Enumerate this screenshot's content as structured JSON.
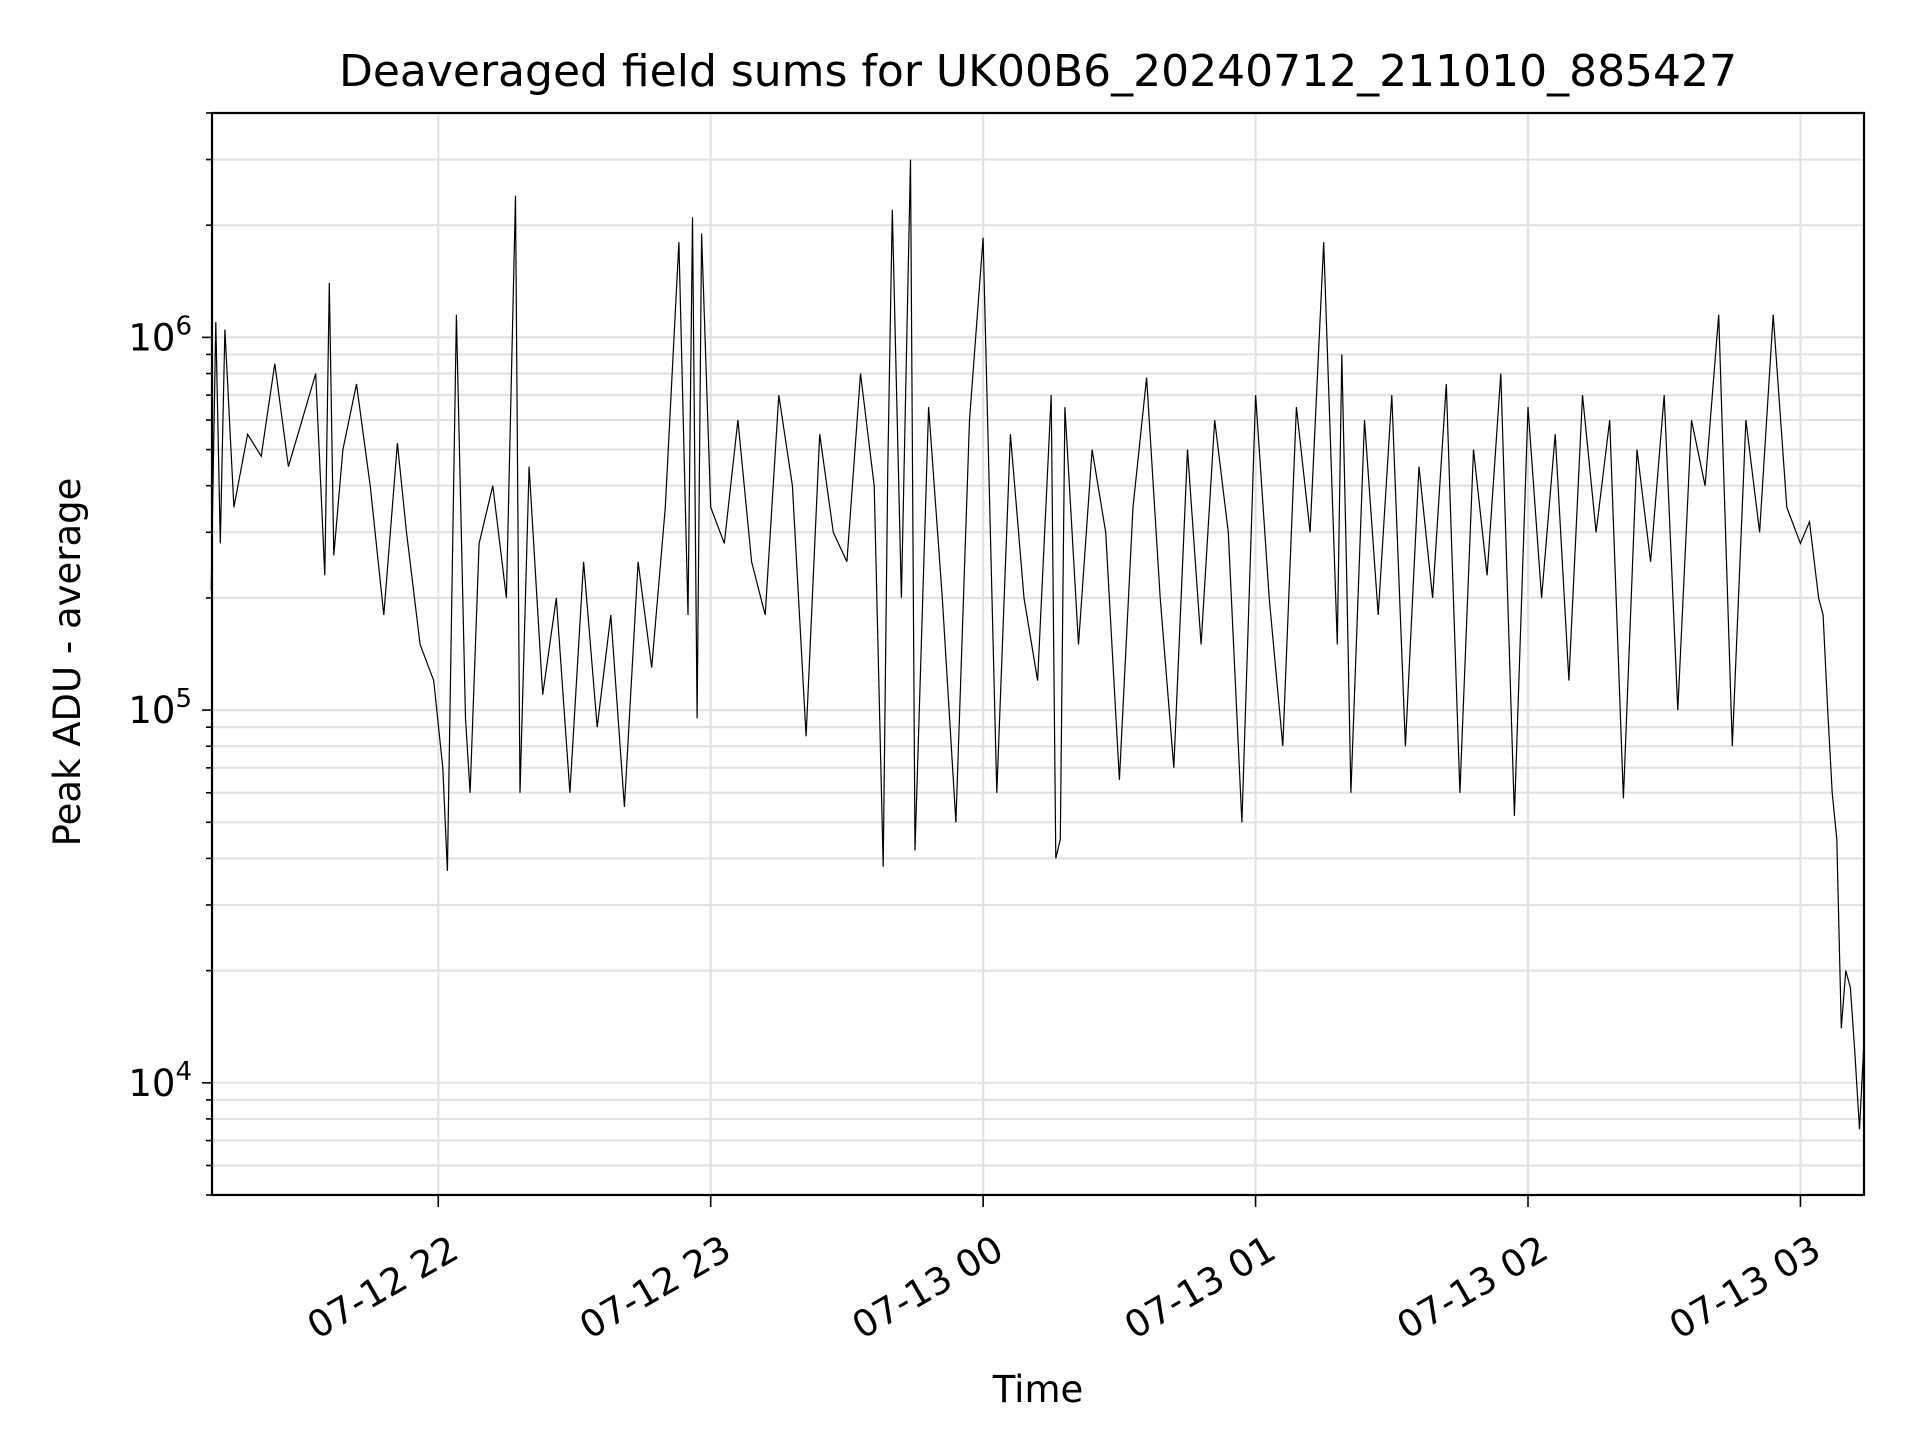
{
  "chart_data": {
    "type": "line",
    "title": "Deaveraged field sums for UK00B6_20240712_211010_885427",
    "xlabel": "Time",
    "ylabel": "Peak ADU - average",
    "x_type": "datetime",
    "xlim": [
      "2024-07-12T21:10:10",
      "2024-07-13T03:14:00"
    ],
    "ylim": [
      5000,
      4000000
    ],
    "yscale": "log",
    "grid": true,
    "legend": "none",
    "x_ticks": [
      "2024-07-12T22:00",
      "2024-07-12T23:00",
      "2024-07-13T00:00",
      "2024-07-13T01:00",
      "2024-07-13T02:00",
      "2024-07-13T03:00"
    ],
    "x_tick_labels": [
      "07-12 22",
      "07-12 23",
      "07-13 00",
      "07-13 01",
      "07-13 02",
      "07-13 03"
    ],
    "y_ticks": [
      {
        "value": 10000,
        "base": "10",
        "exp": "4"
      },
      {
        "value": 100000,
        "base": "10",
        "exp": "5"
      },
      {
        "value": 1000000,
        "base": "10",
        "exp": "6"
      }
    ],
    "series": [
      {
        "color": "#000000",
        "x": [
          "2024-07-12T21:10",
          "2024-07-12T21:11",
          "2024-07-12T21:12",
          "2024-07-12T21:13",
          "2024-07-12T21:15",
          "2024-07-12T21:18",
          "2024-07-12T21:21",
          "2024-07-12T21:24",
          "2024-07-12T21:27",
          "2024-07-12T21:30",
          "2024-07-12T21:33",
          "2024-07-12T21:35",
          "2024-07-12T21:36",
          "2024-07-12T21:37",
          "2024-07-12T21:39",
          "2024-07-12T21:42",
          "2024-07-12T21:45",
          "2024-07-12T21:48",
          "2024-07-12T21:51",
          "2024-07-12T21:53",
          "2024-07-12T21:56",
          "2024-07-12T21:59",
          "2024-07-12T22:01",
          "2024-07-12T22:02",
          "2024-07-12T22:04",
          "2024-07-12T22:06",
          "2024-07-12T22:07",
          "2024-07-12T22:09",
          "2024-07-12T22:12",
          "2024-07-12T22:15",
          "2024-07-12T22:17",
          "2024-07-12T22:18",
          "2024-07-12T22:20",
          "2024-07-12T22:23",
          "2024-07-12T22:26",
          "2024-07-12T22:29",
          "2024-07-12T22:32",
          "2024-07-12T22:35",
          "2024-07-12T22:38",
          "2024-07-12T22:41",
          "2024-07-12T22:44",
          "2024-07-12T22:47",
          "2024-07-12T22:50",
          "2024-07-12T22:53",
          "2024-07-12T22:55",
          "2024-07-12T22:56",
          "2024-07-12T22:57",
          "2024-07-12T22:58",
          "2024-07-12T23:00",
          "2024-07-12T23:03",
          "2024-07-12T23:06",
          "2024-07-12T23:09",
          "2024-07-12T23:12",
          "2024-07-12T23:15",
          "2024-07-12T23:18",
          "2024-07-12T23:21",
          "2024-07-12T23:24",
          "2024-07-12T23:27",
          "2024-07-12T23:30",
          "2024-07-12T23:33",
          "2024-07-12T23:36",
          "2024-07-12T23:38",
          "2024-07-12T23:39",
          "2024-07-12T23:40",
          "2024-07-12T23:42",
          "2024-07-12T23:44",
          "2024-07-12T23:45",
          "2024-07-12T23:48",
          "2024-07-12T23:51",
          "2024-07-12T23:54",
          "2024-07-12T23:57",
          "2024-07-13T00:00",
          "2024-07-13T00:03",
          "2024-07-13T00:06",
          "2024-07-13T00:09",
          "2024-07-13T00:12",
          "2024-07-13T00:15",
          "2024-07-13T00:16",
          "2024-07-13T00:17",
          "2024-07-13T00:18",
          "2024-07-13T00:21",
          "2024-07-13T00:24",
          "2024-07-13T00:27",
          "2024-07-13T00:30",
          "2024-07-13T00:33",
          "2024-07-13T00:36",
          "2024-07-13T00:39",
          "2024-07-13T00:42",
          "2024-07-13T00:45",
          "2024-07-13T00:48",
          "2024-07-13T00:51",
          "2024-07-13T00:54",
          "2024-07-13T00:57",
          "2024-07-13T01:00",
          "2024-07-13T01:03",
          "2024-07-13T01:06",
          "2024-07-13T01:09",
          "2024-07-13T01:12",
          "2024-07-13T01:15",
          "2024-07-13T01:18",
          "2024-07-13T01:19",
          "2024-07-13T01:20",
          "2024-07-13T01:21",
          "2024-07-13T01:24",
          "2024-07-13T01:27",
          "2024-07-13T01:30",
          "2024-07-13T01:33",
          "2024-07-13T01:36",
          "2024-07-13T01:39",
          "2024-07-13T01:42",
          "2024-07-13T01:45",
          "2024-07-13T01:48",
          "2024-07-13T01:51",
          "2024-07-13T01:54",
          "2024-07-13T01:57",
          "2024-07-13T02:00",
          "2024-07-13T02:03",
          "2024-07-13T02:06",
          "2024-07-13T02:09",
          "2024-07-13T02:12",
          "2024-07-13T02:15",
          "2024-07-13T02:18",
          "2024-07-13T02:21",
          "2024-07-13T02:24",
          "2024-07-13T02:27",
          "2024-07-13T02:30",
          "2024-07-13T02:33",
          "2024-07-13T02:36",
          "2024-07-13T02:39",
          "2024-07-13T02:42",
          "2024-07-13T02:45",
          "2024-07-13T02:48",
          "2024-07-13T02:51",
          "2024-07-13T02:54",
          "2024-07-13T02:57",
          "2024-07-13T03:00",
          "2024-07-13T03:02",
          "2024-07-13T03:04",
          "2024-07-13T03:05",
          "2024-07-13T03:06",
          "2024-07-13T03:07",
          "2024-07-13T03:08",
          "2024-07-13T03:09",
          "2024-07-13T03:10",
          "2024-07-13T03:11",
          "2024-07-13T03:12",
          "2024-07-13T03:13",
          "2024-07-13T03:14"
        ],
        "y": [
          210000,
          1100000,
          280000,
          1050000,
          350000,
          550000,
          480000,
          850000,
          450000,
          600000,
          800000,
          230000,
          1400000,
          260000,
          500000,
          750000,
          400000,
          180000,
          520000,
          300000,
          150000,
          120000,
          70000,
          37000,
          1150000,
          95000,
          60000,
          280000,
          400000,
          200000,
          2400000,
          60000,
          450000,
          110000,
          200000,
          60000,
          250000,
          90000,
          180000,
          55000,
          250000,
          130000,
          350000,
          1800000,
          180000,
          2100000,
          95000,
          1900000,
          350000,
          280000,
          600000,
          250000,
          180000,
          700000,
          400000,
          85000,
          550000,
          300000,
          250000,
          800000,
          400000,
          38000,
          450000,
          2200000,
          200000,
          3000000,
          42000,
          650000,
          200000,
          50000,
          600000,
          1850000,
          60000,
          550000,
          200000,
          120000,
          700000,
          40000,
          45000,
          650000,
          150000,
          500000,
          300000,
          65000,
          350000,
          780000,
          200000,
          70000,
          500000,
          150000,
          600000,
          300000,
          50000,
          700000,
          200000,
          80000,
          650000,
          300000,
          1800000,
          150000,
          900000,
          250000,
          60000,
          600000,
          180000,
          700000,
          80000,
          450000,
          200000,
          750000,
          60000,
          500000,
          230000,
          800000,
          52000,
          650000,
          200000,
          550000,
          120000,
          700000,
          300000,
          600000,
          58000,
          500000,
          250000,
          700000,
          100000,
          600000,
          400000,
          1150000,
          80000,
          600000,
          300000,
          1150000,
          350000,
          280000,
          320000,
          200000,
          180000,
          100000,
          60000,
          45000,
          14000,
          20000,
          18000,
          12000,
          7500,
          13000
        ]
      }
    ]
  }
}
